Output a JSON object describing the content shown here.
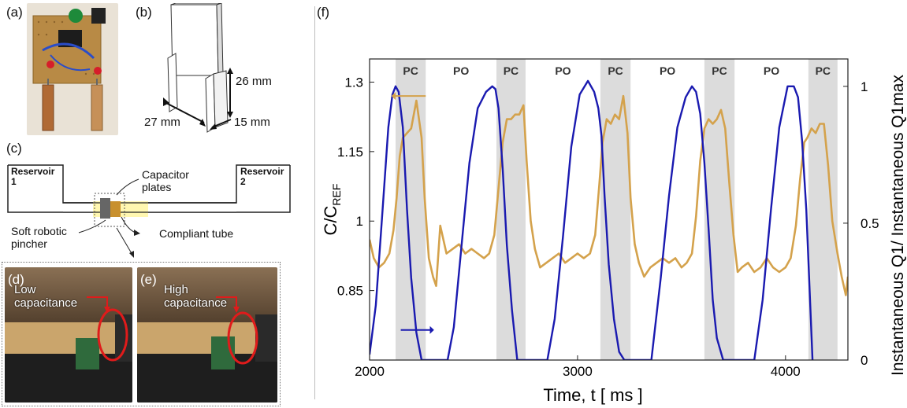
{
  "panels": {
    "a": "(a)",
    "b": "(b)",
    "c": "(c)",
    "d": "(d)",
    "e": "(e)",
    "f": "(f)"
  },
  "panel_b": {
    "dim_height": "26 mm",
    "dim_width": "27 mm",
    "dim_depth": "15 mm"
  },
  "panel_c": {
    "reservoir1": "Reservoir 1",
    "reservoir2": "Reservoir 2",
    "capacitor": "Capacitor plates",
    "pincher": "Soft robotic pincher",
    "tube": "Compliant tube"
  },
  "panel_d": {
    "caption": "Low capacitance"
  },
  "panel_e": {
    "caption": "High capacitance"
  },
  "colors": {
    "orange": "#D4A24C",
    "blue": "#1A1AB0",
    "shade": "#DCDCDC",
    "arrow_red": "#E0402A"
  },
  "chart_data": {
    "type": "line",
    "xlabel": "Time, t [ ms ]",
    "ylabel_left": "C/C_REF",
    "ylabel_right": "Instantaneous Q1/ Instantaneous Q1max",
    "xlim": [
      2000,
      4300
    ],
    "ylim_left": [
      0.7,
      1.35
    ],
    "ylim_right": [
      0,
      1.1
    ],
    "x_ticks": [
      "2000",
      "3000",
      "4000"
    ],
    "y_left_ticks": [
      "0.85",
      "1",
      "1.15",
      "1.3"
    ],
    "y_right_ticks": [
      "0",
      "0.5",
      "1"
    ],
    "phases": [
      {
        "label": "PC",
        "start": 2125,
        "end": 2270
      },
      {
        "label": "PO",
        "start": 2270,
        "end": 2610
      },
      {
        "label": "PC",
        "start": 2610,
        "end": 2750
      },
      {
        "label": "PO",
        "start": 2750,
        "end": 3110
      },
      {
        "label": "PC",
        "start": 3110,
        "end": 3255
      },
      {
        "label": "PO",
        "start": 3255,
        "end": 3610
      },
      {
        "label": "PC",
        "start": 3610,
        "end": 3755
      },
      {
        "label": "PO",
        "start": 3755,
        "end": 4110
      },
      {
        "label": "PC",
        "start": 4110,
        "end": 4250
      }
    ],
    "series": [
      {
        "axis": "left",
        "x": [
          2000,
          2020,
          2045,
          2070,
          2095,
          2115,
          2130,
          2145,
          2160,
          2180,
          2200,
          2225,
          2250,
          2265,
          2285,
          2305,
          2320,
          2340,
          2370,
          2400,
          2430,
          2460,
          2490,
          2520,
          2550,
          2575,
          2600,
          2620,
          2640,
          2660,
          2680,
          2700,
          2720,
          2740,
          2755,
          2775,
          2795,
          2820,
          2850,
          2880,
          2910,
          2940,
          2970,
          3000,
          3030,
          3060,
          3085,
          3105,
          3120,
          3140,
          3160,
          3180,
          3200,
          3220,
          3240,
          3255,
          3275,
          3295,
          3320,
          3350,
          3380,
          3410,
          3440,
          3470,
          3500,
          3525,
          3550,
          3570,
          3590,
          3610,
          3630,
          3650,
          3670,
          3690,
          3710,
          3730,
          3750,
          3770,
          3790,
          3820,
          3850,
          3880,
          3910,
          3940,
          3970,
          4000,
          4025,
          4050,
          4070,
          4090,
          4105,
          4125,
          4145,
          4165,
          4185,
          4205,
          4225,
          4250,
          4270,
          4290,
          4300
        ],
        "y": [
          0.96,
          0.92,
          0.9,
          0.91,
          0.93,
          0.98,
          1.05,
          1.14,
          1.18,
          1.19,
          1.2,
          1.26,
          1.18,
          1.05,
          0.92,
          0.88,
          0.86,
          0.99,
          0.93,
          0.94,
          0.95,
          0.93,
          0.94,
          0.93,
          0.92,
          0.93,
          0.97,
          1.07,
          1.17,
          1.22,
          1.22,
          1.23,
          1.23,
          1.25,
          1.13,
          1.0,
          0.94,
          0.9,
          0.91,
          0.92,
          0.93,
          0.91,
          0.92,
          0.93,
          0.92,
          0.93,
          0.97,
          1.08,
          1.17,
          1.22,
          1.21,
          1.23,
          1.22,
          1.27,
          1.19,
          1.05,
          0.95,
          0.91,
          0.88,
          0.9,
          0.91,
          0.92,
          0.91,
          0.92,
          0.9,
          0.91,
          0.93,
          1.01,
          1.13,
          1.2,
          1.22,
          1.21,
          1.22,
          1.24,
          1.2,
          1.08,
          0.97,
          0.89,
          0.9,
          0.91,
          0.89,
          0.9,
          0.92,
          0.9,
          0.89,
          0.9,
          0.92,
          0.99,
          1.09,
          1.17,
          1.18,
          1.2,
          1.19,
          1.21,
          1.21,
          1.12,
          1.0,
          0.93,
          0.88,
          0.84,
          0.88
        ]
      },
      {
        "axis": "right",
        "x": [
          2000,
          2030,
          2060,
          2090,
          2110,
          2125,
          2140,
          2160,
          2180,
          2200,
          2225,
          2250,
          2375,
          2405,
          2440,
          2480,
          2520,
          2560,
          2590,
          2605,
          2620,
          2640,
          2660,
          2685,
          2710,
          2855,
          2890,
          2930,
          2970,
          3010,
          3050,
          3080,
          3100,
          3115,
          3130,
          3150,
          3175,
          3200,
          3225,
          3355,
          3400,
          3440,
          3480,
          3520,
          3550,
          3570,
          3590,
          3610,
          3630,
          3650,
          3670,
          3700,
          3850,
          3890,
          3930,
          3970,
          4010,
          4040,
          4060,
          4080,
          4100,
          4130
        ],
        "y": [
          0.02,
          0.2,
          0.52,
          0.85,
          0.97,
          1.0,
          0.98,
          0.85,
          0.55,
          0.3,
          0.1,
          0.0,
          0.0,
          0.12,
          0.4,
          0.72,
          0.92,
          0.98,
          1.0,
          0.99,
          0.92,
          0.7,
          0.42,
          0.18,
          0.0,
          0.0,
          0.15,
          0.45,
          0.78,
          0.97,
          1.02,
          0.98,
          0.92,
          0.82,
          0.6,
          0.35,
          0.15,
          0.03,
          0.0,
          0.0,
          0.3,
          0.6,
          0.85,
          0.96,
          1.0,
          0.98,
          0.9,
          0.72,
          0.48,
          0.22,
          0.08,
          0.0,
          0.0,
          0.22,
          0.55,
          0.85,
          1.0,
          1.0,
          0.96,
          0.8,
          0.55,
          0.0
        ]
      }
    ]
  }
}
